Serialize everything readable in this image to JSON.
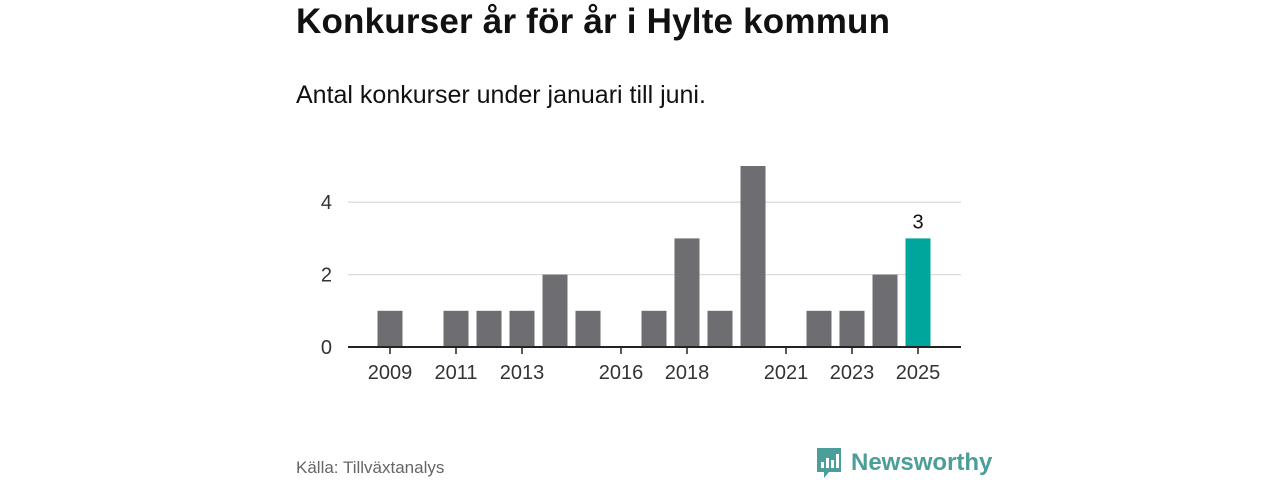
{
  "header": {
    "title": "Konkurser år för år i Hylte kommun",
    "subtitle": "Antal konkurser under januari till juni."
  },
  "footer": {
    "source": "Källa: Tillväxtanalys",
    "brand": "Newsworthy",
    "brand_icon": "bar-chart-speech-bubble-icon"
  },
  "colors": {
    "bar": "#6e6d72",
    "highlight": "#00a69b",
    "grid": "#dcdcdc",
    "axis": "#222222",
    "brand": "#4b9e99"
  },
  "chart_data": {
    "type": "bar",
    "title": "Konkurser år för år i Hylte kommun",
    "subtitle": "Antal konkurser under januari till juni.",
    "xlabel": "",
    "ylabel": "",
    "categories": [
      "2009",
      "2010",
      "2011",
      "2012",
      "2013",
      "2014",
      "2015",
      "2016",
      "2017",
      "2018",
      "2019",
      "2020",
      "2021",
      "2022",
      "2023",
      "2024",
      "2025"
    ],
    "values": [
      1,
      0,
      1,
      1,
      1,
      2,
      1,
      0,
      1,
      3,
      1,
      5,
      0,
      1,
      1,
      2,
      3
    ],
    "highlight_category": "2025",
    "highlight_label": "3",
    "x_tick_labels": [
      "2009",
      "2011",
      "2013",
      "2016",
      "2018",
      "2021",
      "2023",
      "2025"
    ],
    "y_ticks": [
      "0",
      "2",
      "4"
    ],
    "ylim": [
      0,
      5
    ],
    "grid": true,
    "legend": "none"
  }
}
